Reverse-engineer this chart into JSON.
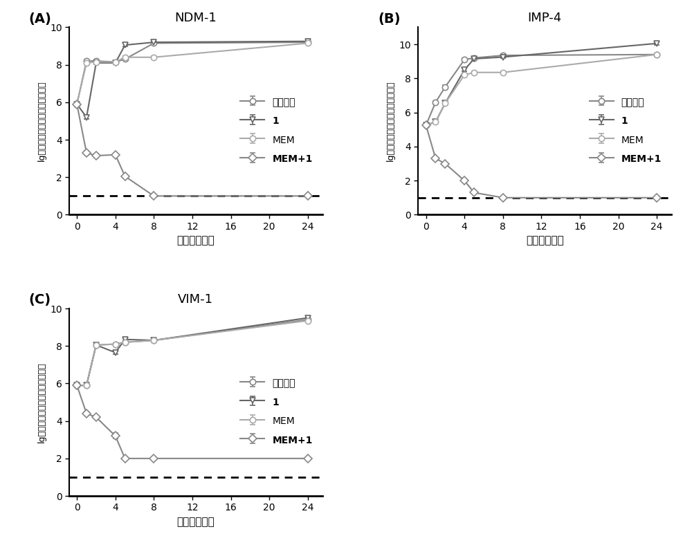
{
  "panels": [
    {
      "label": "(A)",
      "title": "NDM-1",
      "series": {
        "blank": {
          "x": [
            0,
            1,
            2,
            4,
            5,
            8,
            24
          ],
          "y": [
            5.9,
            8.2,
            8.2,
            8.15,
            8.3,
            9.15,
            9.2
          ],
          "yerr": [
            0.0,
            0.08,
            0.08,
            0.07,
            0.07,
            0.07,
            0.07
          ],
          "marker": "o",
          "color": "#888888",
          "mfc": "white",
          "label": "空白对照"
        },
        "comp1": {
          "x": [
            0,
            1,
            2,
            4,
            5,
            8,
            24
          ],
          "y": [
            5.9,
            5.2,
            8.1,
            8.1,
            9.05,
            9.2,
            9.25
          ],
          "yerr": [
            0.0,
            0.08,
            0.07,
            0.07,
            0.07,
            0.07,
            0.07
          ],
          "marker": "v",
          "color": "#666666",
          "mfc": "white",
          "label": "1"
        },
        "MEM": {
          "x": [
            0,
            1,
            2,
            4,
            5,
            8,
            24
          ],
          "y": [
            5.9,
            8.1,
            8.15,
            8.15,
            8.4,
            8.4,
            9.15
          ],
          "yerr": [
            0.0,
            0.08,
            0.07,
            0.07,
            0.05,
            0.05,
            0.07
          ],
          "marker": "o",
          "color": "#aaaaaa",
          "mfc": "white",
          "label": "MEM"
        },
        "MEM1": {
          "x": [
            0,
            1,
            2,
            4,
            5,
            8,
            24
          ],
          "y": [
            5.9,
            3.3,
            3.15,
            3.2,
            2.05,
            1.0,
            1.0
          ],
          "yerr": [
            0.0,
            0.1,
            0.1,
            0.08,
            0.08,
            0.0,
            0.0
          ],
          "marker": "D",
          "color": "#888888",
          "mfc": "white",
          "label": "MEM+1"
        }
      },
      "ylim": [
        0,
        10
      ],
      "yticks": [
        0,
        2,
        4,
        6,
        8,
        10
      ]
    },
    {
      "label": "(B)",
      "title": "IMP-4",
      "series": {
        "blank": {
          "x": [
            0,
            1,
            2,
            4,
            5,
            8,
            24
          ],
          "y": [
            5.25,
            6.6,
            7.5,
            9.1,
            9.2,
            9.35,
            9.4
          ],
          "yerr": [
            0.0,
            0.07,
            0.1,
            0.07,
            0.07,
            0.07,
            0.07
          ],
          "marker": "o",
          "color": "#888888",
          "mfc": "white",
          "label": "空白对照"
        },
        "comp1": {
          "x": [
            0,
            1,
            2,
            4,
            5,
            8,
            24
          ],
          "y": [
            5.25,
            5.45,
            6.55,
            8.5,
            9.15,
            9.25,
            10.05
          ],
          "yerr": [
            0.0,
            0.05,
            0.07,
            0.1,
            0.07,
            0.07,
            0.07
          ],
          "marker": "v",
          "color": "#666666",
          "mfc": "white",
          "label": "1"
        },
        "MEM": {
          "x": [
            0,
            1,
            2,
            4,
            5,
            8,
            24
          ],
          "y": [
            5.25,
            5.45,
            6.55,
            8.2,
            8.35,
            8.35,
            9.4
          ],
          "yerr": [
            0.0,
            0.05,
            0.07,
            0.07,
            0.05,
            0.05,
            0.07
          ],
          "marker": "o",
          "color": "#aaaaaa",
          "mfc": "white",
          "label": "MEM"
        },
        "MEM1": {
          "x": [
            0,
            1,
            2,
            4,
            5,
            8,
            24
          ],
          "y": [
            5.25,
            3.3,
            3.0,
            2.0,
            1.3,
            1.0,
            1.0
          ],
          "yerr": [
            0.0,
            0.1,
            0.05,
            0.07,
            0.05,
            0.0,
            0.0
          ],
          "marker": "D",
          "color": "#888888",
          "mfc": "white",
          "label": "MEM+1"
        }
      },
      "ylim": [
        0,
        11
      ],
      "yticks": [
        0,
        2,
        4,
        6,
        8,
        10
      ]
    },
    {
      "label": "(C)",
      "title": "VIM-1",
      "series": {
        "blank": {
          "x": [
            0,
            1,
            2,
            4,
            5,
            8,
            24
          ],
          "y": [
            5.9,
            5.9,
            8.05,
            8.1,
            8.2,
            8.3,
            9.4
          ],
          "yerr": [
            0.0,
            0.0,
            0.07,
            0.07,
            0.05,
            0.05,
            0.07
          ],
          "marker": "o",
          "color": "#888888",
          "mfc": "white",
          "label": "空白对照"
        },
        "comp1": {
          "x": [
            0,
            1,
            2,
            4,
            5,
            8,
            24
          ],
          "y": [
            5.9,
            5.9,
            8.05,
            7.65,
            8.35,
            8.3,
            9.5
          ],
          "yerr": [
            0.0,
            0.0,
            0.07,
            0.07,
            0.05,
            0.05,
            0.07
          ],
          "marker": "v",
          "color": "#666666",
          "mfc": "white",
          "label": "1"
        },
        "MEM": {
          "x": [
            0,
            1,
            2,
            4,
            5,
            8,
            24
          ],
          "y": [
            5.9,
            5.9,
            8.05,
            8.1,
            8.2,
            8.3,
            9.35
          ],
          "yerr": [
            0.0,
            0.0,
            0.07,
            0.07,
            0.05,
            0.05,
            0.07
          ],
          "marker": "o",
          "color": "#aaaaaa",
          "mfc": "white",
          "label": "MEM"
        },
        "MEM1": {
          "x": [
            0,
            1,
            2,
            4,
            5,
            8,
            24
          ],
          "y": [
            5.9,
            4.4,
            4.2,
            3.2,
            2.0,
            2.0,
            2.0
          ],
          "yerr": [
            0.0,
            0.1,
            0.05,
            0.15,
            0.0,
            0.0,
            0.0
          ],
          "marker": "D",
          "color": "#888888",
          "mfc": "white",
          "label": "MEM+1"
        }
      },
      "ylim": [
        0,
        10
      ],
      "yticks": [
        0,
        2,
        4,
        6,
        8,
        10
      ]
    }
  ],
  "xlabel": "时间（小时）",
  "ylabel": "lg（每毫升菌液中细菌群落总数）",
  "dotted_line_y": 1.0,
  "background_color": "#ffffff",
  "xticks": [
    0,
    4,
    8,
    12,
    16,
    20,
    24
  ],
  "markersize": 6,
  "linewidth": 1.5,
  "capsize": 3
}
